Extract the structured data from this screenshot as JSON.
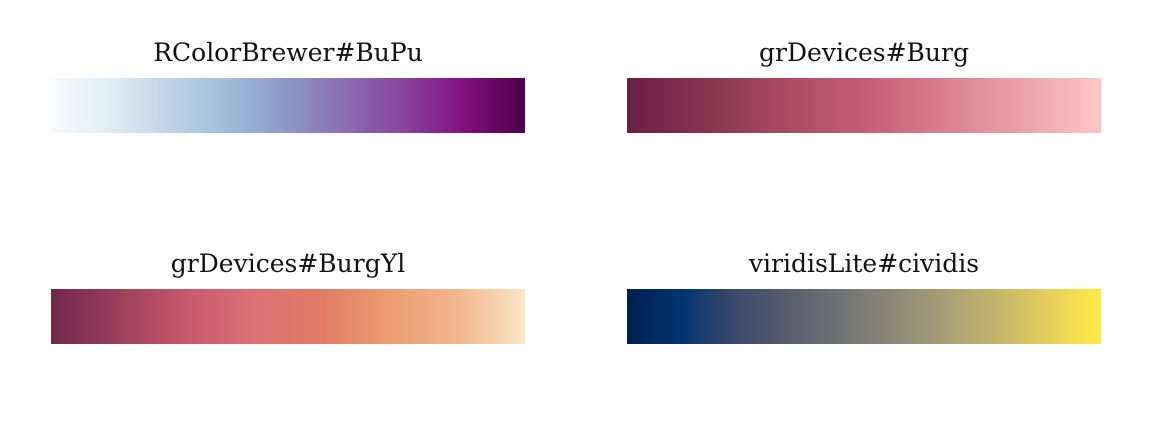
{
  "palettes": [
    {
      "title": "RColorBrewer#BuPu",
      "colors": [
        "#F7FCFD",
        "#E0ECF4",
        "#BFD3E6",
        "#9EBCDA",
        "#8C96C6",
        "#8C6BB1",
        "#88419D",
        "#810F7C",
        "#4D004B"
      ]
    },
    {
      "title": "grDevices#Burg",
      "colors": [
        "#672044",
        "#893350",
        "#A84B61",
        "#C45D75",
        "#D97F8D",
        "#EAA2A6",
        "#FFC6C4"
      ]
    },
    {
      "title": "grDevices#BurgYl",
      "colors": [
        "#70284A",
        "#9C3F5D",
        "#C8586C",
        "#DC7176",
        "#E27C64",
        "#EC9C72",
        "#F2B68F",
        "#FBE6C5"
      ]
    },
    {
      "title": "viridisLite#cividis",
      "colors": [
        "#00204D",
        "#00336F",
        "#39486B",
        "#575C6D",
        "#707173",
        "#8A8779",
        "#A69D75",
        "#C4B56C",
        "#E4CF5B",
        "#FFEA46"
      ]
    }
  ]
}
